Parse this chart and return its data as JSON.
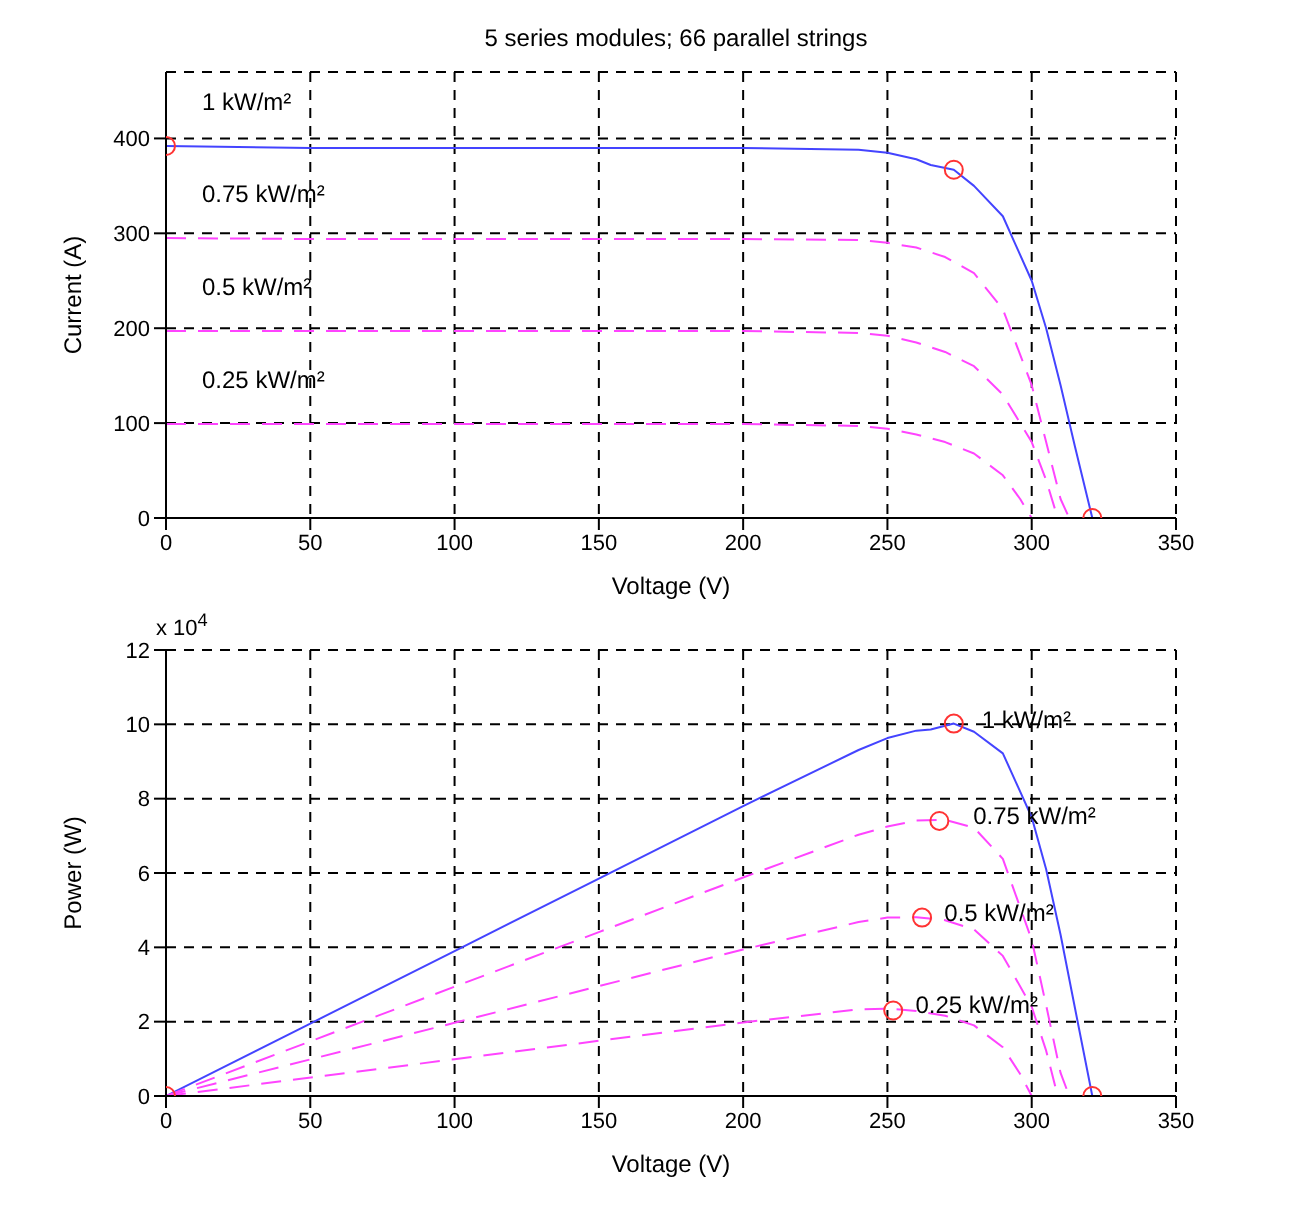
{
  "chart_data": [
    {
      "type": "line",
      "title": "5 series modules; 66 parallel strings",
      "xlabel": "Voltage (V)",
      "ylabel": "Current (A)",
      "xlim": [
        0,
        350
      ],
      "xticks": [
        0,
        50,
        100,
        150,
        200,
        250,
        300,
        350
      ],
      "ylim": [
        0,
        470
      ],
      "yticks": [
        0,
        100,
        200,
        300,
        400
      ],
      "grid": true,
      "series": [
        {
          "name": "1 kW/m²",
          "color": "#4444ff",
          "line_style": "solid",
          "marker": "none",
          "x": [
            0,
            50,
            100,
            150,
            200,
            240,
            250,
            260,
            265,
            273,
            280,
            290,
            300,
            305,
            310,
            315,
            321
          ],
          "values": [
            392,
            390,
            390,
            390,
            390,
            388,
            385,
            378,
            372,
            367,
            350,
            318,
            250,
            200,
            140,
            75,
            0
          ]
        },
        {
          "name": "0.75 kW/m²",
          "color": "#ff44ff",
          "line_style": "dashed",
          "marker": "none",
          "x": [
            0,
            50,
            100,
            150,
            200,
            240,
            250,
            260,
            270,
            280,
            290,
            300,
            305,
            310,
            313
          ],
          "values": [
            295,
            294,
            294,
            294,
            294,
            293,
            290,
            285,
            275,
            258,
            220,
            140,
            80,
            20,
            0
          ]
        },
        {
          "name": "0.5 kW/m²",
          "color": "#ff44ff",
          "line_style": "dashed",
          "marker": "none",
          "x": [
            0,
            100,
            200,
            240,
            250,
            260,
            270,
            280,
            290,
            300,
            305,
            309
          ],
          "values": [
            197,
            197,
            197,
            195,
            192,
            185,
            175,
            160,
            130,
            80,
            40,
            0
          ]
        },
        {
          "name": "0.25 kW/m²",
          "color": "#ff44ff",
          "line_style": "dashed",
          "marker": "none",
          "x": [
            0,
            100,
            200,
            240,
            250,
            260,
            270,
            280,
            290,
            296,
            300
          ],
          "values": [
            99,
            99,
            99,
            97,
            94,
            88,
            80,
            68,
            45,
            20,
            0
          ]
        },
        {
          "type": "scatter",
          "color": "#ff3333",
          "marker": "circle",
          "x": [
            0,
            273,
            321
          ],
          "values": [
            392,
            367,
            0
          ]
        }
      ]
    },
    {
      "type": "line",
      "xlabel": "Voltage (V)",
      "ylabel": "Power (W)",
      "xlim": [
        0,
        350
      ],
      "xticks": [
        0,
        50,
        100,
        150,
        200,
        250,
        300,
        350
      ],
      "ylim": [
        0,
        12
      ],
      "yticks": [
        0,
        2,
        4,
        6,
        8,
        10,
        12
      ],
      "grid": true,
      "series": [
        {
          "name": "1 kW/m²",
          "color": "#4444ff",
          "line_style": "solid",
          "marker": "none",
          "x": [
            0,
            50,
            100,
            150,
            200,
            240,
            250,
            260,
            265,
            273,
            280,
            290,
            300,
            305,
            310,
            315,
            321
          ],
          "values": [
            0,
            1.95,
            3.9,
            5.85,
            7.8,
            9.31,
            9.63,
            9.83,
            9.86,
            10.02,
            9.8,
            9.22,
            7.5,
            6.1,
            4.34,
            2.36,
            0
          ]
        },
        {
          "name": "0.75 kW/m²",
          "color": "#ff44ff",
          "line_style": "dashed",
          "marker": "none",
          "x": [
            0,
            50,
            100,
            150,
            200,
            240,
            250,
            260,
            270,
            280,
            290,
            300,
            305,
            310,
            313
          ],
          "values": [
            0,
            1.47,
            2.94,
            4.41,
            5.88,
            7.03,
            7.25,
            7.41,
            7.43,
            7.22,
            6.38,
            4.2,
            2.44,
            0.62,
            0
          ]
        },
        {
          "name": "0.5 kW/m²",
          "color": "#ff44ff",
          "line_style": "dashed",
          "marker": "none",
          "x": [
            0,
            100,
            200,
            240,
            250,
            260,
            270,
            280,
            290,
            300,
            305,
            309
          ],
          "values": [
            0,
            1.97,
            3.94,
            4.68,
            4.8,
            4.81,
            4.73,
            4.48,
            3.77,
            2.4,
            1.22,
            0
          ]
        },
        {
          "name": "0.25 kW/m²",
          "color": "#ff44ff",
          "line_style": "dashed",
          "marker": "none",
          "x": [
            0,
            100,
            200,
            240,
            250,
            260,
            270,
            280,
            290,
            296,
            300
          ],
          "values": [
            0,
            0.99,
            1.98,
            2.33,
            2.35,
            2.29,
            2.16,
            1.9,
            1.31,
            0.59,
            0
          ]
        },
        {
          "type": "scatter",
          "color": "#ff3333",
          "marker": "circle",
          "x": [
            0,
            273,
            268,
            262,
            252,
            321
          ],
          "values": [
            0,
            10.02,
            7.4,
            4.8,
            2.3,
            0
          ]
        }
      ],
      "annotations": [
        "x 10$^{4}$"
      ]
    }
  ]
}
